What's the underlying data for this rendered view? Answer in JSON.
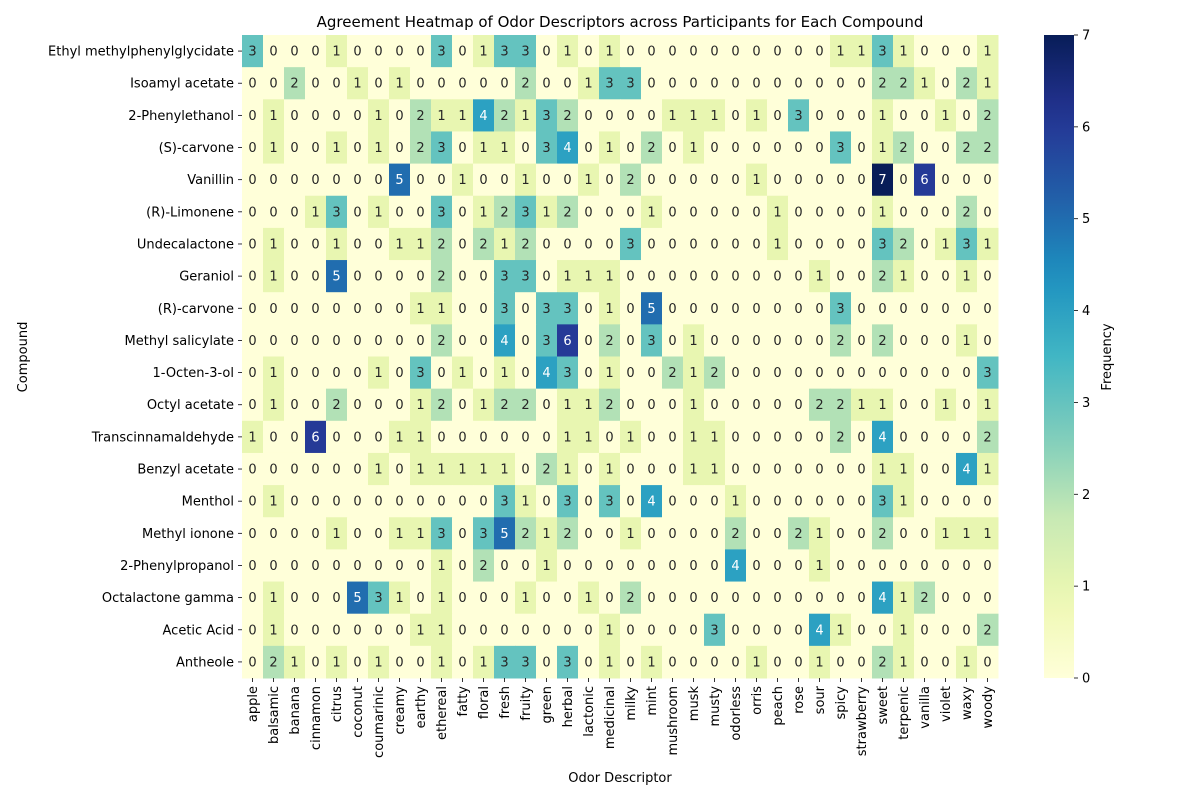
{
  "chart_data": {
    "type": "heatmap",
    "title": "Agreement Heatmap of Odor Descriptors across Participants for Each Compound",
    "xlabel": "Odor Descriptor",
    "ylabel": "Compound",
    "colorbar_label": "Frequency",
    "colormap": "YlGnBu",
    "value_range": [
      0,
      7
    ],
    "colorbar_ticks": [
      0,
      1,
      2,
      3,
      4,
      5,
      6,
      7
    ],
    "columns": [
      "apple",
      "balsamic",
      "banana",
      "cinnamon",
      "citrus",
      "coconut",
      "coumarinic",
      "creamy",
      "earthy",
      "ethereal",
      "fatty",
      "floral",
      "fresh",
      "fruity",
      "green",
      "herbal",
      "lactonic",
      "medicinal",
      "milky",
      "mint",
      "mushroom",
      "musk",
      "musty",
      "odorless",
      "orris",
      "peach",
      "rose",
      "sour",
      "spicy",
      "strawberry",
      "sweet",
      "terpenic",
      "vanilla",
      "violet",
      "waxy",
      "woody"
    ],
    "rows": [
      "Ethyl methylphenylglycidate",
      "Isoamyl acetate",
      "2-Phenylethanol",
      "(S)-carvone",
      "Vanillin",
      "(R)-Limonene",
      "Undecalactone",
      "Geraniol",
      "(R)-carvone",
      "Methyl salicylate",
      "1-Octen-3-ol",
      "Octyl acetate",
      "Transcinnamaldehyde",
      "Benzyl acetate",
      "Menthol",
      "Methyl ionone",
      "2-Phenylpropanol",
      "Octalactone gamma",
      "Acetic Acid",
      "Antheole"
    ],
    "values": [
      [
        3,
        0,
        0,
        0,
        1,
        0,
        0,
        0,
        0,
        3,
        0,
        1,
        3,
        3,
        0,
        1,
        0,
        1,
        0,
        0,
        0,
        0,
        0,
        0,
        0,
        0,
        0,
        0,
        1,
        1,
        3,
        1,
        0,
        0,
        0,
        1
      ],
      [
        0,
        0,
        2,
        0,
        0,
        1,
        0,
        1,
        0,
        0,
        0,
        0,
        0,
        2,
        0,
        0,
        1,
        3,
        3,
        0,
        0,
        0,
        0,
        0,
        0,
        0,
        0,
        0,
        0,
        0,
        2,
        2,
        1,
        0,
        2,
        1
      ],
      [
        0,
        1,
        0,
        0,
        0,
        0,
        1,
        0,
        2,
        1,
        1,
        4,
        2,
        1,
        3,
        2,
        0,
        0,
        0,
        0,
        1,
        1,
        1,
        0,
        1,
        0,
        3,
        0,
        0,
        0,
        1,
        0,
        0,
        1,
        0,
        2
      ],
      [
        0,
        1,
        0,
        0,
        1,
        0,
        1,
        0,
        2,
        3,
        0,
        1,
        1,
        0,
        3,
        4,
        0,
        1,
        0,
        2,
        0,
        1,
        0,
        0,
        0,
        0,
        0,
        0,
        3,
        0,
        1,
        2,
        0,
        0,
        2,
        2
      ],
      [
        0,
        0,
        0,
        0,
        0,
        0,
        0,
        5,
        0,
        0,
        1,
        0,
        0,
        1,
        0,
        0,
        1,
        0,
        2,
        0,
        0,
        0,
        0,
        0,
        1,
        0,
        0,
        0,
        0,
        0,
        7,
        0,
        6,
        0,
        0,
        0
      ],
      [
        0,
        0,
        0,
        1,
        3,
        0,
        1,
        0,
        0,
        3,
        0,
        1,
        2,
        3,
        1,
        2,
        0,
        0,
        0,
        1,
        0,
        0,
        0,
        0,
        0,
        1,
        0,
        0,
        0,
        0,
        1,
        0,
        0,
        0,
        2,
        0
      ],
      [
        0,
        1,
        0,
        0,
        1,
        0,
        0,
        1,
        1,
        2,
        0,
        2,
        1,
        2,
        0,
        0,
        0,
        0,
        3,
        0,
        0,
        0,
        0,
        0,
        0,
        1,
        0,
        0,
        0,
        0,
        3,
        2,
        0,
        1,
        3,
        1
      ],
      [
        0,
        1,
        0,
        0,
        5,
        0,
        0,
        0,
        0,
        2,
        0,
        0,
        3,
        3,
        0,
        1,
        1,
        1,
        0,
        0,
        0,
        0,
        0,
        0,
        0,
        0,
        0,
        1,
        0,
        0,
        2,
        1,
        0,
        0,
        1,
        0
      ],
      [
        0,
        0,
        0,
        0,
        0,
        0,
        0,
        0,
        1,
        1,
        0,
        0,
        3,
        0,
        3,
        3,
        0,
        1,
        0,
        5,
        0,
        0,
        0,
        0,
        0,
        0,
        0,
        0,
        3,
        0,
        0,
        0,
        0,
        0,
        0,
        0
      ],
      [
        0,
        0,
        0,
        0,
        0,
        0,
        0,
        0,
        0,
        2,
        0,
        0,
        4,
        0,
        3,
        6,
        0,
        2,
        0,
        3,
        0,
        1,
        0,
        0,
        0,
        0,
        0,
        0,
        2,
        0,
        2,
        0,
        0,
        0,
        1,
        0
      ],
      [
        0,
        1,
        0,
        0,
        0,
        0,
        1,
        0,
        3,
        0,
        1,
        0,
        1,
        0,
        4,
        3,
        0,
        1,
        0,
        0,
        2,
        1,
        2,
        0,
        0,
        0,
        0,
        0,
        0,
        0,
        0,
        0,
        0,
        0,
        0,
        3
      ],
      [
        0,
        1,
        0,
        0,
        2,
        0,
        0,
        0,
        1,
        2,
        0,
        1,
        2,
        2,
        0,
        1,
        1,
        2,
        0,
        0,
        0,
        1,
        0,
        0,
        0,
        0,
        0,
        2,
        2,
        1,
        1,
        0,
        0,
        1,
        0,
        1
      ],
      [
        1,
        0,
        0,
        6,
        0,
        0,
        0,
        1,
        1,
        0,
        0,
        0,
        0,
        0,
        0,
        1,
        1,
        0,
        1,
        0,
        0,
        1,
        1,
        0,
        0,
        0,
        0,
        0,
        2,
        0,
        4,
        0,
        0,
        0,
        0,
        2
      ],
      [
        0,
        0,
        0,
        0,
        0,
        0,
        1,
        0,
        1,
        1,
        1,
        1,
        1,
        0,
        2,
        1,
        0,
        1,
        0,
        0,
        0,
        1,
        1,
        0,
        0,
        0,
        0,
        0,
        0,
        0,
        1,
        1,
        0,
        0,
        4,
        1
      ],
      [
        0,
        1,
        0,
        0,
        0,
        0,
        0,
        0,
        0,
        0,
        0,
        0,
        3,
        1,
        0,
        3,
        0,
        3,
        0,
        4,
        0,
        0,
        0,
        1,
        0,
        0,
        0,
        0,
        0,
        0,
        3,
        1,
        0,
        0,
        0,
        0
      ],
      [
        0,
        0,
        0,
        0,
        1,
        0,
        0,
        1,
        1,
        3,
        0,
        3,
        5,
        2,
        1,
        2,
        0,
        0,
        1,
        0,
        0,
        0,
        0,
        2,
        0,
        0,
        2,
        1,
        0,
        0,
        2,
        0,
        0,
        1,
        1,
        1
      ],
      [
        0,
        0,
        0,
        0,
        0,
        0,
        0,
        0,
        0,
        1,
        0,
        2,
        0,
        0,
        1,
        0,
        0,
        0,
        0,
        0,
        0,
        0,
        0,
        4,
        0,
        0,
        0,
        1,
        0,
        0,
        0,
        0,
        0,
        0,
        0,
        0
      ],
      [
        0,
        1,
        0,
        0,
        0,
        5,
        3,
        1,
        0,
        1,
        0,
        0,
        0,
        1,
        0,
        0,
        1,
        0,
        2,
        0,
        0,
        0,
        0,
        0,
        0,
        0,
        0,
        0,
        0,
        0,
        4,
        1,
        2,
        0,
        0,
        0
      ],
      [
        0,
        1,
        0,
        0,
        0,
        0,
        0,
        0,
        1,
        1,
        0,
        0,
        0,
        0,
        0,
        0,
        0,
        1,
        0,
        0,
        0,
        0,
        3,
        0,
        0,
        0,
        0,
        4,
        1,
        0,
        0,
        1,
        0,
        0,
        0,
        2
      ],
      [
        0,
        2,
        1,
        0,
        1,
        0,
        1,
        0,
        0,
        1,
        0,
        1,
        3,
        3,
        0,
        3,
        0,
        1,
        0,
        1,
        0,
        0,
        0,
        0,
        1,
        0,
        0,
        1,
        0,
        0,
        2,
        1,
        0,
        0,
        1,
        0
      ]
    ]
  }
}
